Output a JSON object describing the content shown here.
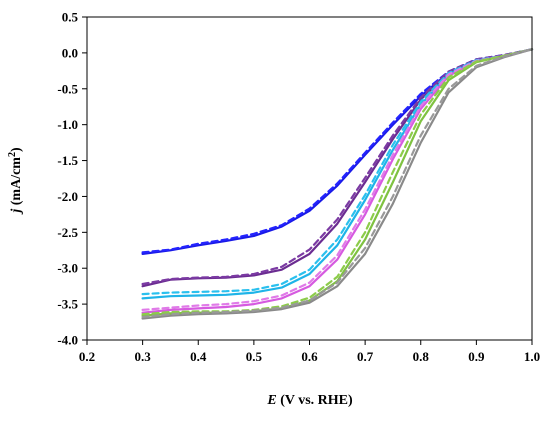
{
  "chart_data": {
    "type": "line",
    "xlabel": {
      "var": "E",
      "rest": " (V vs. RHE)"
    },
    "ylabel": {
      "var": "j",
      "rest": " (mA/cm",
      "sup": "2",
      "end": ")"
    },
    "xlim": [
      0.2,
      1.0
    ],
    "ylim": [
      -4.0,
      0.5
    ],
    "xticks": [
      "0.2",
      "0.3",
      "0.4",
      "0.5",
      "0.6",
      "0.7",
      "0.8",
      "0.9",
      "1.0"
    ],
    "yticks": [
      "0.5",
      "0.0",
      "-0.5",
      "-1.0",
      "-1.5",
      "-2.0",
      "-2.5",
      "-3.0",
      "-3.5",
      "-4.0"
    ],
    "grid": false,
    "legend": "none",
    "series": [
      {
        "color": "#1a1ae6",
        "dash": false,
        "x": [
          0.3,
          0.35,
          0.4,
          0.45,
          0.5,
          0.55,
          0.6,
          0.65,
          0.7,
          0.75,
          0.8,
          0.85,
          0.9,
          0.95,
          1.0
        ],
        "y": [
          -2.8,
          -2.75,
          -2.68,
          -2.62,
          -2.55,
          -2.42,
          -2.2,
          -1.85,
          -1.42,
          -1.0,
          -0.6,
          -0.28,
          -0.1,
          -0.04,
          0.05
        ]
      },
      {
        "color": "#2424ff",
        "dash": true,
        "x": [
          0.3,
          0.35,
          0.4,
          0.45,
          0.5,
          0.55,
          0.6,
          0.65,
          0.7,
          0.75,
          0.8,
          0.85,
          0.9,
          0.95,
          1.0
        ],
        "y": [
          -2.78,
          -2.74,
          -2.66,
          -2.6,
          -2.52,
          -2.4,
          -2.17,
          -1.82,
          -1.39,
          -0.97,
          -0.57,
          -0.26,
          -0.09,
          -0.03,
          0.05
        ]
      },
      {
        "color": "#6b2c91",
        "dash": false,
        "x": [
          0.3,
          0.35,
          0.4,
          0.45,
          0.5,
          0.55,
          0.6,
          0.65,
          0.7,
          0.75,
          0.8,
          0.85,
          0.9,
          0.95,
          1.0
        ],
        "y": [
          -3.25,
          -3.16,
          -3.14,
          -3.13,
          -3.1,
          -3.02,
          -2.8,
          -2.38,
          -1.8,
          -1.2,
          -0.65,
          -0.28,
          -0.1,
          -0.04,
          0.05
        ]
      },
      {
        "color": "#7b3aa3",
        "dash": true,
        "x": [
          0.3,
          0.35,
          0.4,
          0.45,
          0.5,
          0.55,
          0.6,
          0.65,
          0.7,
          0.75,
          0.8,
          0.85,
          0.9,
          0.95,
          1.0
        ],
        "y": [
          -3.22,
          -3.15,
          -3.13,
          -3.12,
          -3.08,
          -2.98,
          -2.74,
          -2.32,
          -1.74,
          -1.15,
          -0.62,
          -0.26,
          -0.09,
          -0.03,
          0.05
        ]
      },
      {
        "color": "#1eb4e8",
        "dash": false,
        "x": [
          0.3,
          0.35,
          0.4,
          0.45,
          0.5,
          0.55,
          0.6,
          0.65,
          0.7,
          0.75,
          0.8,
          0.85,
          0.9,
          0.95,
          1.0
        ],
        "y": [
          -3.42,
          -3.39,
          -3.38,
          -3.37,
          -3.34,
          -3.27,
          -3.08,
          -2.68,
          -2.05,
          -1.35,
          -0.72,
          -0.3,
          -0.11,
          -0.04,
          0.05
        ]
      },
      {
        "color": "#2ac0ee",
        "dash": true,
        "x": [
          0.3,
          0.35,
          0.4,
          0.45,
          0.5,
          0.55,
          0.6,
          0.65,
          0.7,
          0.75,
          0.8,
          0.85,
          0.9,
          0.95,
          1.0
        ],
        "y": [
          -3.36,
          -3.34,
          -3.33,
          -3.32,
          -3.3,
          -3.22,
          -3.02,
          -2.6,
          -1.98,
          -1.28,
          -0.68,
          -0.28,
          -0.1,
          -0.04,
          0.05
        ]
      },
      {
        "color": "#d65ae0",
        "dash": false,
        "x": [
          0.3,
          0.35,
          0.4,
          0.45,
          0.5,
          0.55,
          0.6,
          0.65,
          0.7,
          0.75,
          0.8,
          0.85,
          0.9,
          0.95,
          1.0
        ],
        "y": [
          -3.62,
          -3.58,
          -3.56,
          -3.54,
          -3.5,
          -3.42,
          -3.25,
          -2.88,
          -2.25,
          -1.48,
          -0.78,
          -0.32,
          -0.12,
          -0.04,
          0.05
        ]
      },
      {
        "color": "#e07ae8",
        "dash": true,
        "x": [
          0.3,
          0.35,
          0.4,
          0.45,
          0.5,
          0.55,
          0.6,
          0.65,
          0.7,
          0.75,
          0.8,
          0.85,
          0.9,
          0.95,
          1.0
        ],
        "y": [
          -3.58,
          -3.55,
          -3.52,
          -3.5,
          -3.46,
          -3.38,
          -3.2,
          -2.82,
          -2.18,
          -1.42,
          -0.74,
          -0.3,
          -0.11,
          -0.04,
          0.05
        ]
      },
      {
        "color": "#7fc241",
        "dash": false,
        "x": [
          0.3,
          0.35,
          0.4,
          0.45,
          0.5,
          0.55,
          0.6,
          0.65,
          0.7,
          0.75,
          0.8,
          0.85,
          0.9,
          0.95,
          1.0
        ],
        "y": [
          -3.66,
          -3.63,
          -3.62,
          -3.62,
          -3.6,
          -3.56,
          -3.45,
          -3.18,
          -2.6,
          -1.8,
          -0.95,
          -0.38,
          -0.13,
          -0.04,
          0.05
        ]
      },
      {
        "color": "#8ccc4a",
        "dash": true,
        "x": [
          0.3,
          0.35,
          0.4,
          0.45,
          0.5,
          0.55,
          0.6,
          0.65,
          0.7,
          0.75,
          0.8,
          0.85,
          0.9,
          0.95,
          1.0
        ],
        "y": [
          -3.64,
          -3.61,
          -3.6,
          -3.6,
          -3.58,
          -3.53,
          -3.41,
          -3.12,
          -2.5,
          -1.66,
          -0.86,
          -0.34,
          -0.12,
          -0.04,
          0.05
        ]
      },
      {
        "color": "#8a8a8a",
        "dash": false,
        "x": [
          0.3,
          0.35,
          0.4,
          0.45,
          0.5,
          0.55,
          0.6,
          0.65,
          0.7,
          0.75,
          0.8,
          0.85,
          0.9,
          0.95,
          1.0
        ],
        "y": [
          -3.7,
          -3.66,
          -3.64,
          -3.63,
          -3.61,
          -3.57,
          -3.48,
          -3.25,
          -2.8,
          -2.1,
          -1.25,
          -0.55,
          -0.2,
          -0.06,
          0.05
        ]
      },
      {
        "color": "#999999",
        "dash": true,
        "x": [
          0.3,
          0.35,
          0.4,
          0.45,
          0.5,
          0.55,
          0.6,
          0.65,
          0.7,
          0.75,
          0.8,
          0.85,
          0.9,
          0.95,
          1.0
        ],
        "y": [
          -3.68,
          -3.64,
          -3.62,
          -3.61,
          -3.59,
          -3.55,
          -3.45,
          -3.2,
          -2.72,
          -2.0,
          -1.15,
          -0.5,
          -0.18,
          -0.05,
          0.05
        ]
      }
    ]
  }
}
